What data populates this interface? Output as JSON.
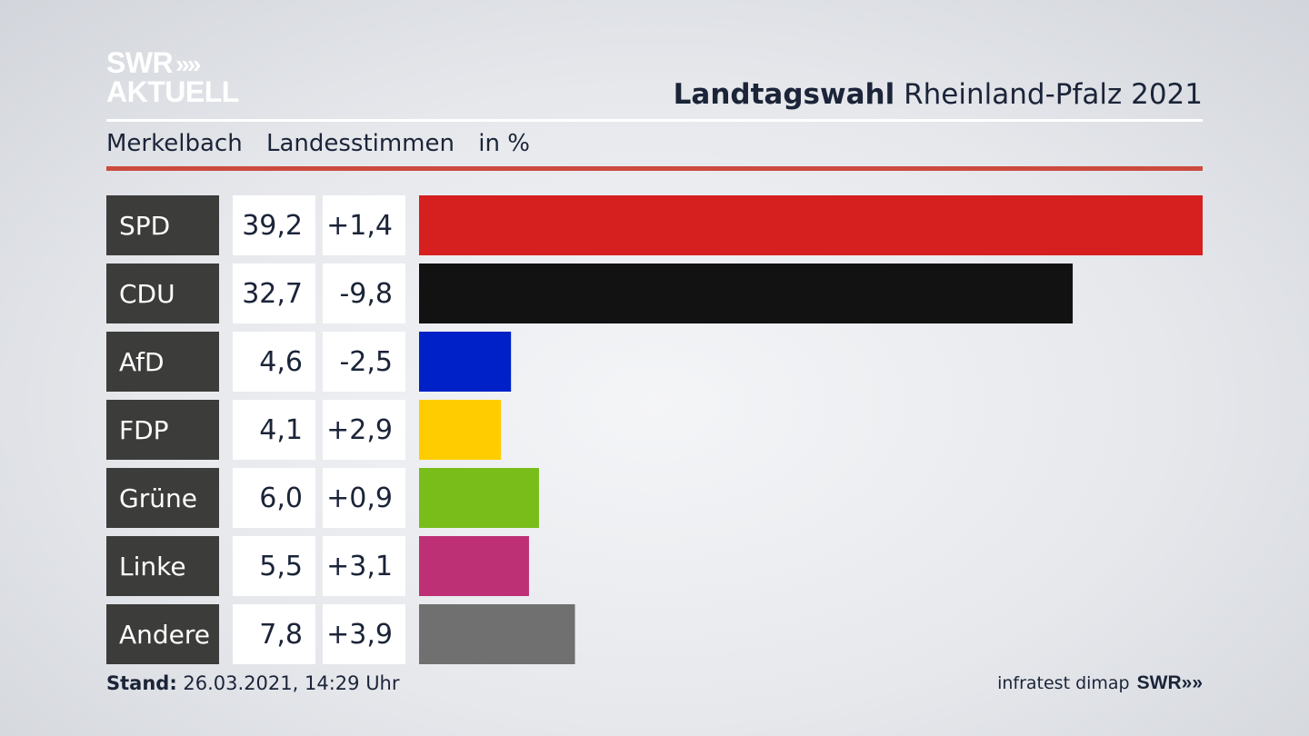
{
  "logo": {
    "line1": "SWR",
    "arrows": "»",
    "line2": "AKTUELL"
  },
  "header": {
    "title_bold": "Landtagswahl",
    "title_regular": "Rheinland-Pfalz 2021"
  },
  "subtitle": {
    "place": "Merkelbach",
    "type": "Landesstimmen",
    "unit": "in %"
  },
  "footer": {
    "stand_label": "Stand:",
    "stand_value": "26.03.2021, 14:29 Uhr",
    "source": "infratest dimap",
    "brand": "SWR",
    "brand_arrows": "»"
  },
  "colors": {
    "row_label_bg": "#3c3c3b",
    "value_bg": "#ffffff"
  },
  "chart_data": {
    "type": "bar",
    "orientation": "horizontal",
    "title": "Landtagswahl Rheinland-Pfalz 2021",
    "subtitle": "Merkelbach Landesstimmen in %",
    "categories": [
      "SPD",
      "CDU",
      "AfD",
      "FDP",
      "Grüne",
      "Linke",
      "Andere"
    ],
    "values": [
      39.2,
      32.7,
      4.6,
      4.1,
      6.0,
      5.5,
      7.8
    ],
    "value_labels": [
      "39,2",
      "32,7",
      "4,6",
      "4,1",
      "6,0",
      "5,5",
      "7,8"
    ],
    "changes": [
      "+1,4",
      "-9,8",
      "-2,5",
      "+2,9",
      "+0,9",
      "+3,1",
      "+3,9"
    ],
    "bar_colors": [
      "#d61f1f",
      "#121212",
      "#0021c8",
      "#ffcc00",
      "#79bd1b",
      "#be3075",
      "#707070"
    ],
    "xlim": [
      0,
      39.2
    ],
    "unit": "%"
  }
}
